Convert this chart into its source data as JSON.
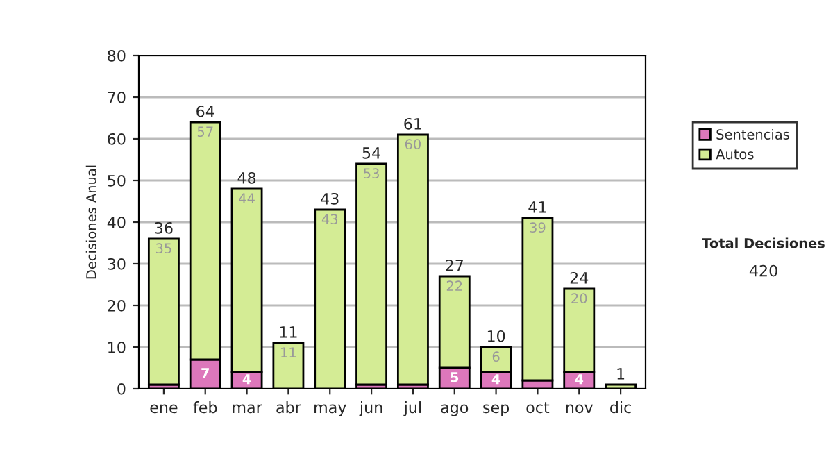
{
  "chart_data": {
    "type": "bar",
    "stacked": true,
    "ylabel": "Decisiones Anual",
    "categories": [
      "ene",
      "feb",
      "mar",
      "abr",
      "may",
      "jun",
      "jul",
      "ago",
      "sep",
      "oct",
      "nov",
      "dic"
    ],
    "series": [
      {
        "name": "Sentencias",
        "color": "#dd77bb",
        "values": [
          1,
          7,
          4,
          0,
          0,
          1,
          1,
          5,
          4,
          2,
          4,
          0
        ],
        "value_labels": [
          null,
          "7",
          "4",
          null,
          null,
          null,
          null,
          "5",
          "4",
          null,
          "4",
          null
        ]
      },
      {
        "name": "Autos",
        "color": "#d4ec95",
        "values": [
          35,
          57,
          44,
          11,
          43,
          53,
          60,
          22,
          6,
          39,
          20,
          1
        ],
        "value_labels": [
          "35",
          "57",
          "44",
          "11",
          "43",
          "53",
          "60",
          "22",
          "6",
          "39",
          "20",
          null
        ]
      }
    ],
    "totals": [
      "36",
      "64",
      "48",
      "11",
      "43",
      "54",
      "61",
      "27",
      "10",
      "41",
      "24",
      "1"
    ],
    "ylim": [
      0,
      80
    ],
    "yticks": [
      0,
      10,
      20,
      30,
      40,
      50,
      60,
      70,
      80
    ],
    "grid": "y",
    "legend": "right",
    "annotations": [
      "Total Decisiones",
      "420"
    ]
  }
}
